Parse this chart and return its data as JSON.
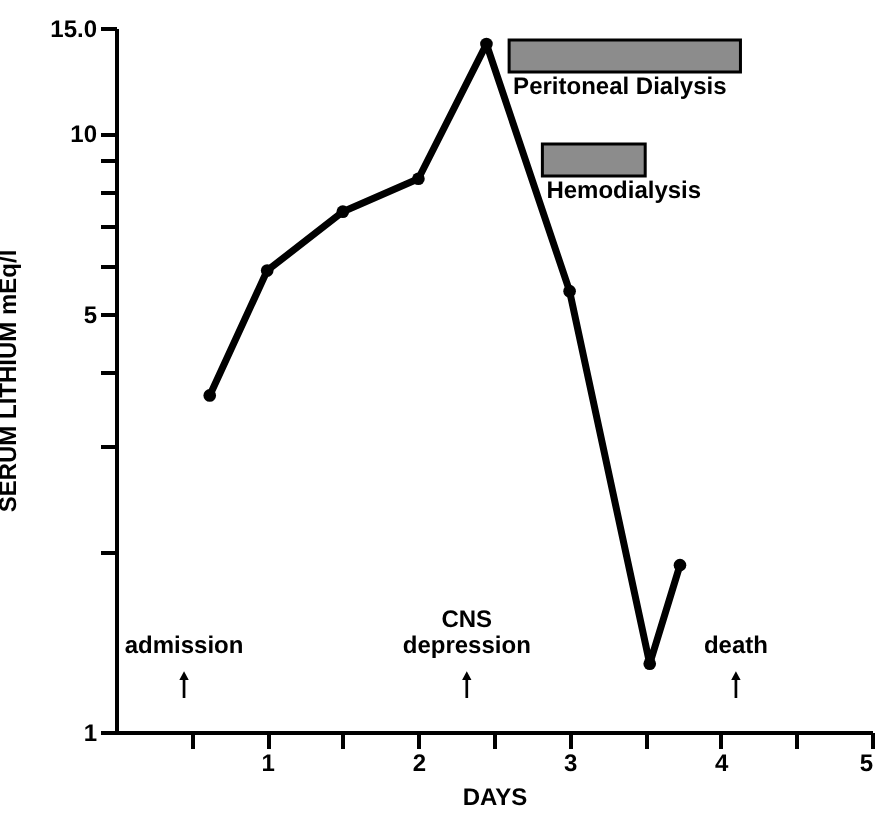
{
  "chart_data": {
    "type": "line",
    "xlabel": "DAYS",
    "ylabel": "SERUM LITHIUM  mEq/l",
    "x": [
      0.62,
      1.0,
      1.5,
      2.0,
      2.45,
      3.0,
      3.53,
      3.73
    ],
    "series": [
      {
        "color": "#000000",
        "values": [
          3.65,
          5.9,
          7.4,
          8.4,
          14.1,
          5.45,
          1.3,
          1.9
        ]
      }
    ],
    "xlim": [
      0,
      5
    ],
    "xticks": [
      {
        "value": 0.5,
        "label": null
      },
      1,
      {
        "value": 1.5,
        "label": null
      },
      2,
      {
        "value": 2.5,
        "label": null
      },
      3,
      {
        "value": 3.5,
        "label": null
      },
      4,
      {
        "value": 4.5,
        "label": null
      },
      5
    ],
    "ylim": [
      1,
      15
    ],
    "yticks": [
      1,
      {
        "value": 2,
        "label": null
      },
      {
        "value": 3,
        "label": null
      },
      {
        "value": 4,
        "label": null
      },
      5,
      {
        "value": 6,
        "label": null
      },
      {
        "value": 7,
        "label": null
      },
      {
        "value": 8,
        "label": null
      },
      {
        "value": 9,
        "label": null
      },
      10,
      {
        "value": 15,
        "label": "15.0"
      }
    ],
    "log": "y",
    "grid": false,
    "marker": "circle",
    "line_style": "solid",
    "bands": [
      {
        "axis": "x",
        "from": 2.6,
        "to": 4.13,
        "label": "Peritoneal Dialysis",
        "color": "#8c8c8c"
      },
      {
        "axis": "x",
        "from": 2.82,
        "to": 3.5,
        "label": "Hemodialysis",
        "color": "#8c8c8c"
      }
    ],
    "annotations": [
      {
        "text": "admission",
        "x": 0.45,
        "y": 1.2
      },
      {
        "text": "CNS\ndepression",
        "x": 2.32,
        "y": 1.2
      },
      {
        "text": "death",
        "x": 4.1,
        "y": 1.2
      }
    ]
  }
}
